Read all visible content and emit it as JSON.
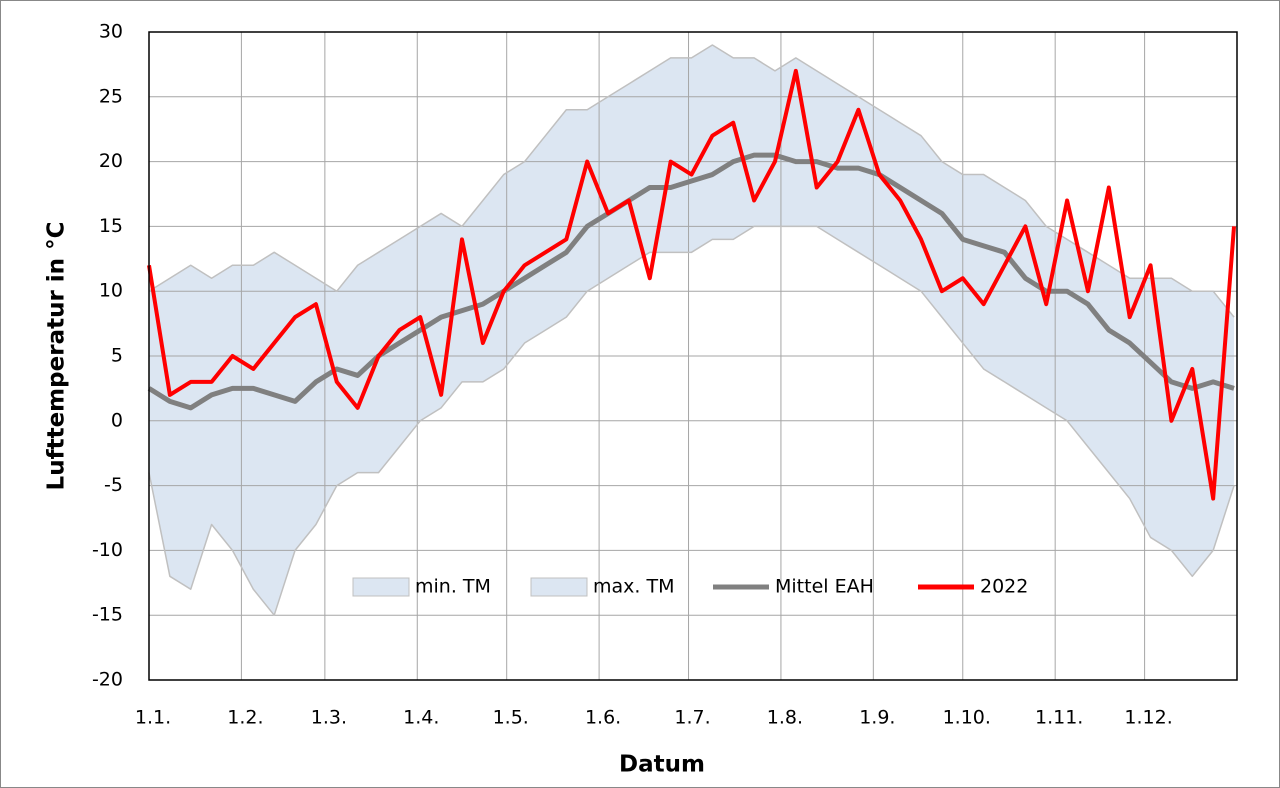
{
  "chart_data": {
    "type": "line",
    "y_label": "Lufttemperatur in °C",
    "x_label": "Datum",
    "xlim": [
      1,
      366
    ],
    "ylim": [
      -20,
      30
    ],
    "yticks": [
      -20,
      -15,
      -10,
      -5,
      0,
      5,
      10,
      15,
      20,
      25,
      30
    ],
    "xticks": [
      {
        "value": 1,
        "label": "1.1."
      },
      {
        "value": 32,
        "label": "1.2."
      },
      {
        "value": 60,
        "label": "1.3."
      },
      {
        "value": 91,
        "label": "1.4."
      },
      {
        "value": 121,
        "label": "1.5."
      },
      {
        "value": 152,
        "label": "1.6."
      },
      {
        "value": 182,
        "label": "1.7."
      },
      {
        "value": 213,
        "label": "1.8."
      },
      {
        "value": 244,
        "label": "1.9."
      },
      {
        "value": 274,
        "label": "1.10."
      },
      {
        "value": 305,
        "label": "1.11."
      },
      {
        "value": 335,
        "label": "1.12."
      }
    ],
    "grid": true,
    "legend": "lower center",
    "x": [
      1,
      8,
      15,
      22,
      29,
      36,
      43,
      50,
      57,
      64,
      71,
      78,
      85,
      92,
      99,
      106,
      113,
      120,
      127,
      134,
      141,
      148,
      155,
      162,
      169,
      176,
      183,
      190,
      197,
      204,
      211,
      218,
      225,
      232,
      239,
      246,
      253,
      260,
      267,
      274,
      281,
      288,
      295,
      302,
      309,
      316,
      323,
      330,
      337,
      344,
      351,
      358,
      365
    ],
    "series": [
      {
        "name": "min. TM",
        "style": "band",
        "color": "#dce6f2",
        "line_color": "#c0c0c0",
        "values": [
          -4,
          -12,
          -13,
          -8,
          -10,
          -13,
          -15,
          -10,
          -8,
          -5,
          -4,
          -4,
          -2,
          0,
          1,
          3,
          3,
          4,
          6,
          7,
          8,
          10,
          11,
          12,
          13,
          13,
          13,
          14,
          14,
          15,
          15,
          15,
          15,
          14,
          13,
          12,
          11,
          10,
          8,
          6,
          4,
          3,
          2,
          1,
          0,
          -2,
          -4,
          -6,
          -9,
          -10,
          -12,
          -10,
          -5
        ]
      },
      {
        "name": "max. TM",
        "style": "band",
        "color": "#dce6f2",
        "line_color": "#c0c0c0",
        "values": [
          10,
          11,
          12,
          11,
          12,
          12,
          13,
          12,
          11,
          10,
          12,
          13,
          14,
          15,
          16,
          15,
          17,
          19,
          20,
          22,
          24,
          24,
          25,
          26,
          27,
          28,
          28,
          29,
          28,
          28,
          27,
          28,
          27,
          26,
          25,
          24,
          23,
          22,
          20,
          19,
          19,
          18,
          17,
          15,
          14,
          13,
          12,
          11,
          11,
          11,
          10,
          10,
          8
        ]
      },
      {
        "name": "Mittel EAH",
        "style": "line",
        "color": "#808080",
        "values": [
          2.5,
          1.5,
          1,
          2,
          2.5,
          2.5,
          2,
          1.5,
          3,
          4,
          3.5,
          5,
          6,
          7,
          8,
          8.5,
          9,
          10,
          11,
          12,
          13,
          15,
          16,
          17,
          18,
          18,
          18.5,
          19,
          20,
          20.5,
          20.5,
          20,
          20,
          19.5,
          19.5,
          19,
          18,
          17,
          16,
          14,
          13.5,
          13,
          11,
          10,
          10,
          9,
          7,
          6,
          4.5,
          3,
          2.5,
          3,
          2.5
        ]
      },
      {
        "name": "2022",
        "style": "line",
        "color": "#ff0000",
        "values": [
          12,
          2,
          3,
          3,
          5,
          4,
          6,
          8,
          9,
          3,
          1,
          5,
          7,
          8,
          2,
          14,
          6,
          10,
          12,
          13,
          14,
          20,
          16,
          17,
          11,
          20,
          19,
          22,
          23,
          17,
          20,
          27,
          18,
          20,
          24,
          19,
          17,
          14,
          10,
          11,
          9,
          12,
          15,
          9,
          17,
          10,
          18,
          8,
          12,
          0,
          4,
          -6,
          15
        ]
      }
    ]
  }
}
